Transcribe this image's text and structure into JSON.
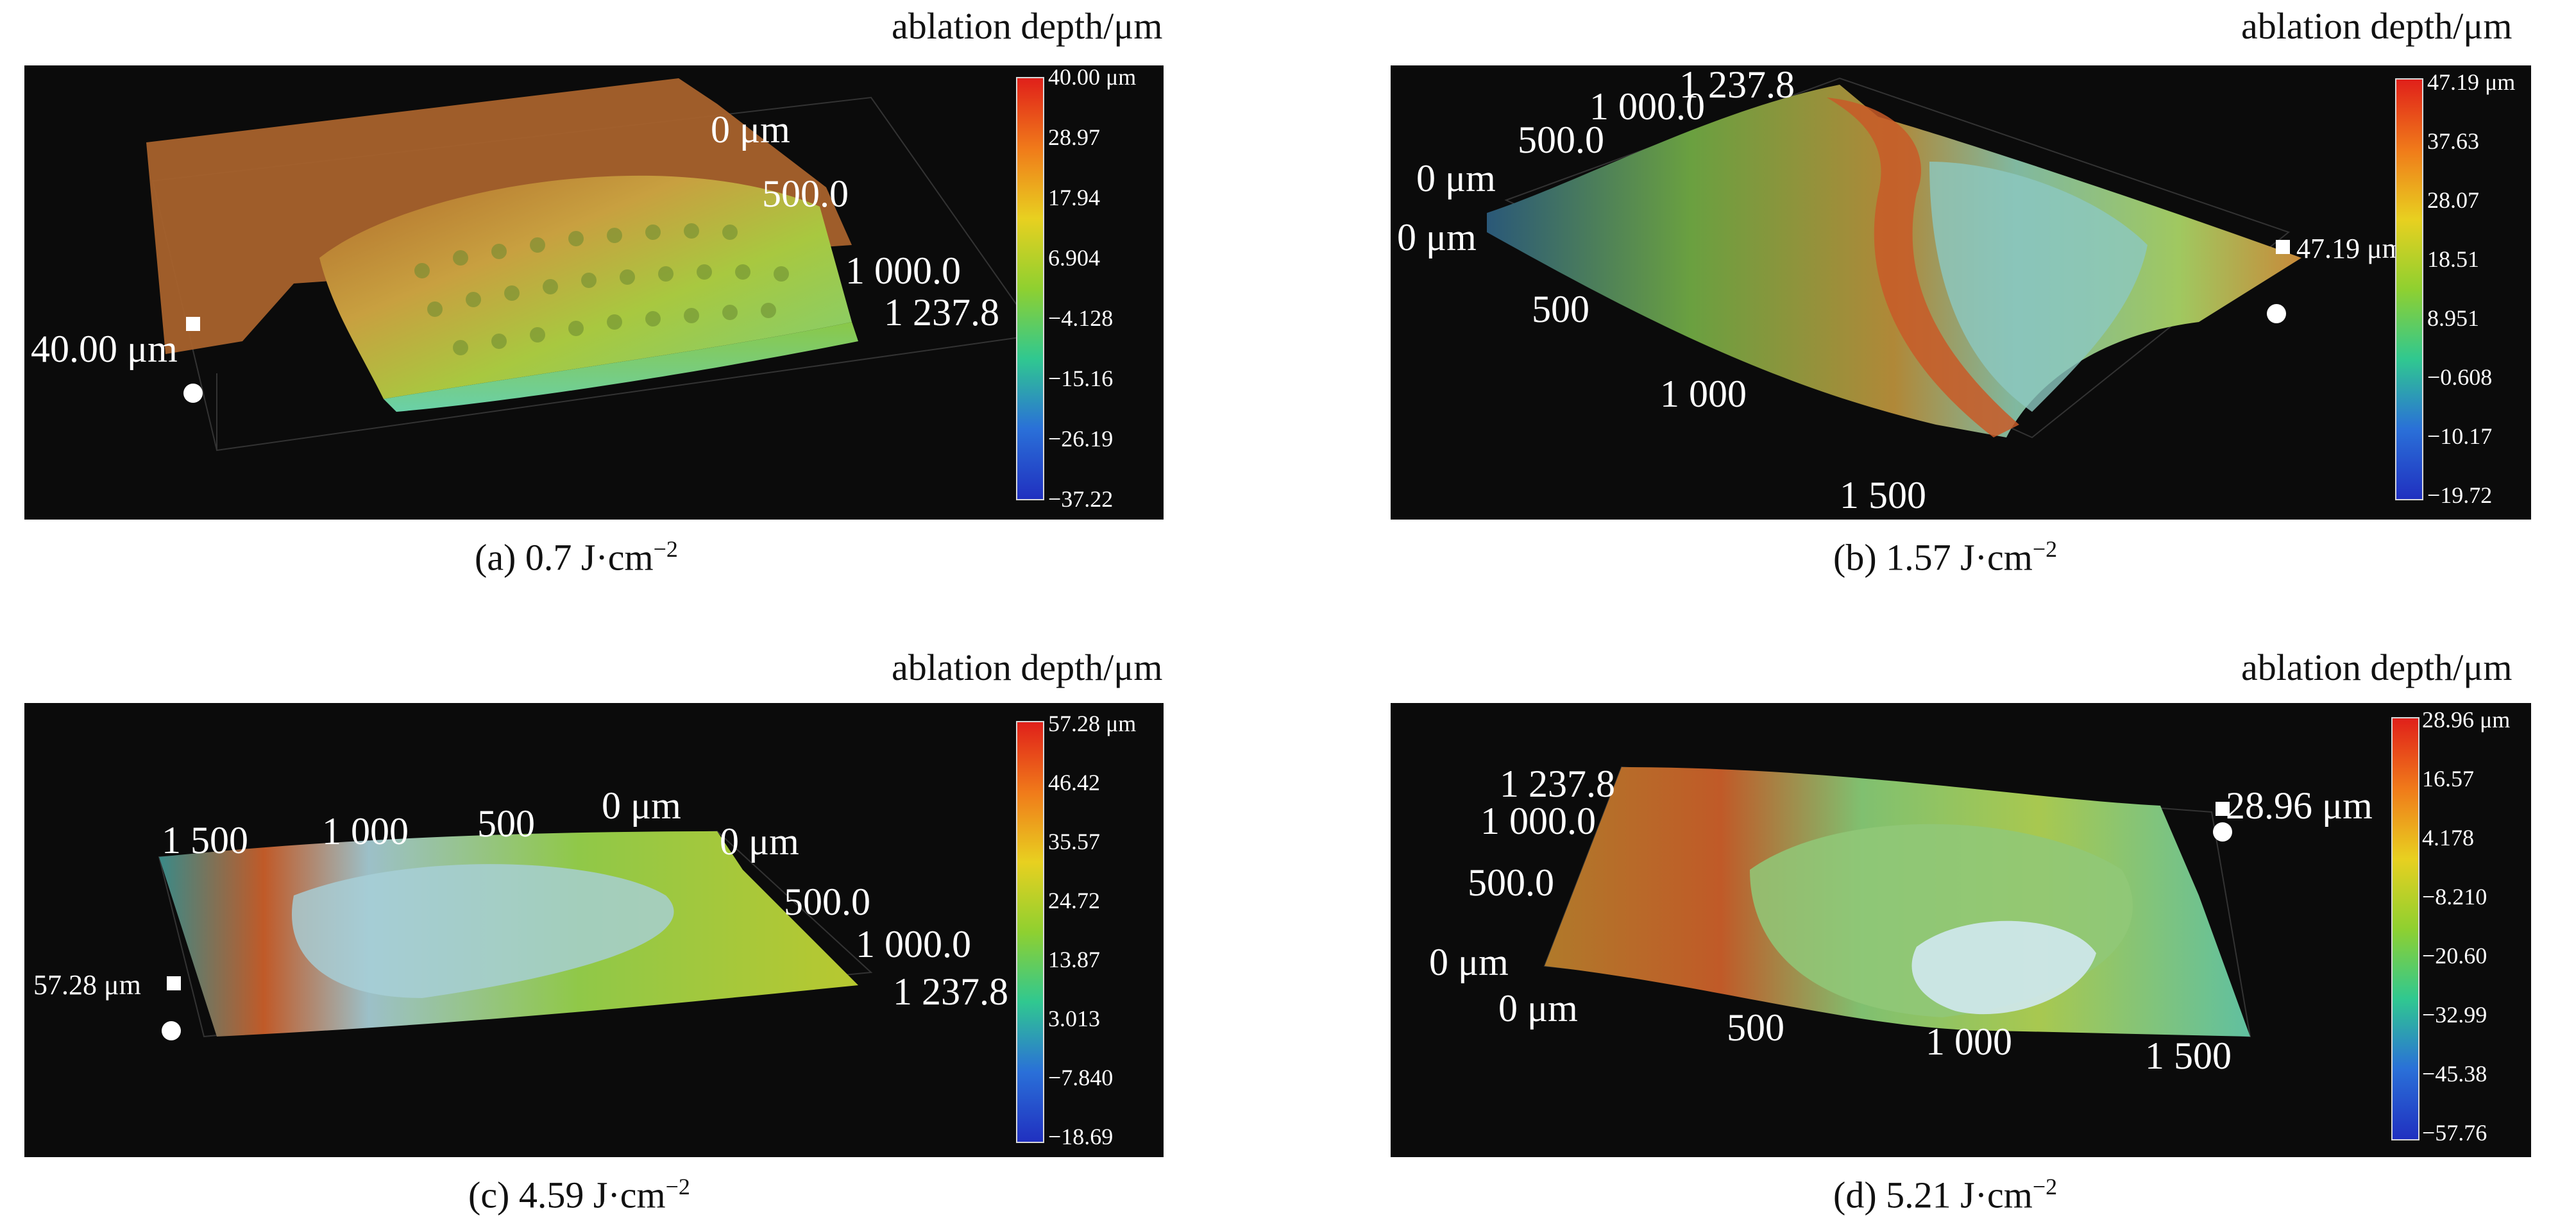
{
  "panels": [
    {
      "id": "a",
      "title": "ablation depth/μm",
      "caption_prefix": "(a) 0.7 J·cm",
      "caption_exp": "−2",
      "colorbar_ticks": [
        "40.00 μm",
        "28.97",
        "17.94",
        "6.904",
        "−4.128",
        "−15.16",
        "−26.19",
        "−37.22"
      ],
      "axis_labels": [
        "0 μm",
        "500.0",
        "1 000.0",
        "1 237.8"
      ],
      "height_label": "40.00 μm"
    },
    {
      "id": "b",
      "title": "ablation depth/μm",
      "caption_prefix": "(b) 1.57 J·cm",
      "caption_exp": "−2",
      "colorbar_ticks": [
        "47.19 μm",
        "37.63",
        "28.07",
        "18.51",
        "8.951",
        "−0.608",
        "−10.17",
        "−19.72"
      ],
      "axis_labels": [
        "1 237.8",
        "1 000.0",
        "500.0",
        "0 μm",
        "0 μm",
        "500",
        "1 000",
        "1 500"
      ],
      "height_label": "47.19 μm"
    },
    {
      "id": "c",
      "title": "ablation depth/μm",
      "caption_prefix": "(c) 4.59 J·cm",
      "caption_exp": "−2",
      "colorbar_ticks": [
        "57.28 μm",
        "46.42",
        "35.57",
        "24.72",
        "13.87",
        "3.013",
        "−7.840",
        "−18.69"
      ],
      "axis_labels": [
        "1 500",
        "1 000",
        "500",
        "0 μm",
        "0 μm",
        "500.0",
        "1 000.0",
        "1 237.8"
      ],
      "height_label": "57.28 μm"
    },
    {
      "id": "d",
      "title": "ablation depth/μm",
      "caption_prefix": "(d) 5.21 J·cm",
      "caption_exp": "−2",
      "colorbar_ticks": [
        "28.96 μm",
        "16.57",
        "4.178",
        "−8.210",
        "−20.60",
        "−32.99",
        "−45.38",
        "−57.76"
      ],
      "axis_labels": [
        "1 237.8",
        "1 000.0",
        "500.0",
        "0 μm",
        "0 μm",
        "500",
        "1 000",
        "1 500"
      ],
      "height_label": "28.96 μm"
    }
  ],
  "colors": {
    "colorbar_gradient": [
      "#e0201a",
      "#f07a1a",
      "#e8d020",
      "#8fd030",
      "#30c890",
      "#2a70d8",
      "#2030c0"
    ]
  }
}
